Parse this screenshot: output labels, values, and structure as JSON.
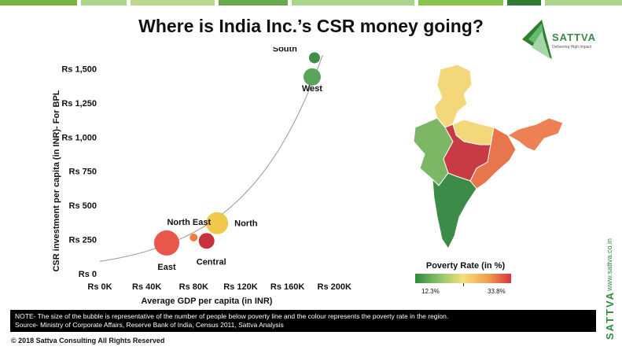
{
  "header": {
    "title": "Where is India Inc.’s CSR money going?",
    "top_stripe_colors": [
      "#7cb342",
      "#a8d58a",
      "#b9d98f",
      "#6aa84f",
      "#a8d58a",
      "#8bc34a",
      "#2e7d32",
      "#a8d58a"
    ]
  },
  "logo": {
    "brand": "SATTVA",
    "tagline": "Delivering High Impact",
    "colors": [
      "#2e7d32",
      "#66bb6a",
      "#a5d6a7"
    ]
  },
  "chart_data": {
    "type": "scatter",
    "xlabel": "Average GDP per capita (in INR)",
    "ylabel": "CSR investment per capita (in INR)- For BPL",
    "x_ticks": [
      "Rs 0K",
      "Rs 40K",
      "Rs 80K",
      "Rs 120K",
      "Rs 160K",
      "Rs 200K"
    ],
    "x_tick_values": [
      0,
      40,
      80,
      120,
      160,
      200
    ],
    "y_ticks": [
      "Rs 0",
      "Rs 250",
      "Rs 500",
      "Rs 750",
      "Rs 1,000",
      "Rs 1,250",
      "Rs 1,500"
    ],
    "y_tick_values": [
      0,
      250,
      500,
      750,
      1000,
      1250,
      1500
    ],
    "xlim": [
      0,
      230
    ],
    "ylim": [
      0,
      1600
    ],
    "x_unit": "K INR",
    "y_unit": "INR",
    "grid": false,
    "size_meaning": "number of people below poverty line",
    "color_meaning": "poverty rate",
    "points": [
      {
        "label": "South",
        "x": 183,
        "y": 1580,
        "size": 7,
        "color": "#3b9147"
      },
      {
        "label": "West",
        "x": 181,
        "y": 1440,
        "size": 11,
        "color": "#5aa55a"
      },
      {
        "label": "North",
        "x": 100,
        "y": 370,
        "size": 14,
        "color": "#f2c84b"
      },
      {
        "label": "North East",
        "x": 80,
        "y": 265,
        "size": 5,
        "color": "#ef7d42"
      },
      {
        "label": "East",
        "x": 57,
        "y": 225,
        "size": 16,
        "color": "#e8574a"
      },
      {
        "label": "Central",
        "x": 91,
        "y": 240,
        "size": 10,
        "color": "#c7323d"
      }
    ],
    "trendline": "exponential"
  },
  "map": {
    "colors": {
      "north": "#f3d77a",
      "northeast": "#ee8055",
      "west": "#7bb764",
      "central": "#c83b44",
      "east": "#e8764d",
      "south": "#3d8b48"
    }
  },
  "legend": {
    "title": "Poverty Rate (in %)",
    "min": "12.3%",
    "max": "33.8%"
  },
  "note": {
    "line1": "NOTE- The size of the bubble is representative of the number of people below poverty line and the colour represents the poverty rate in the region.",
    "line2": "Source- Ministry of Corporate Affairs, Reserve Bank of India, Census 2011, Sattva Analysis"
  },
  "footer": {
    "copyright": "© 2018 Sattva Consulting All Rights Reserved",
    "url": "www.sattva.co.in",
    "brand": "SATTVA"
  }
}
